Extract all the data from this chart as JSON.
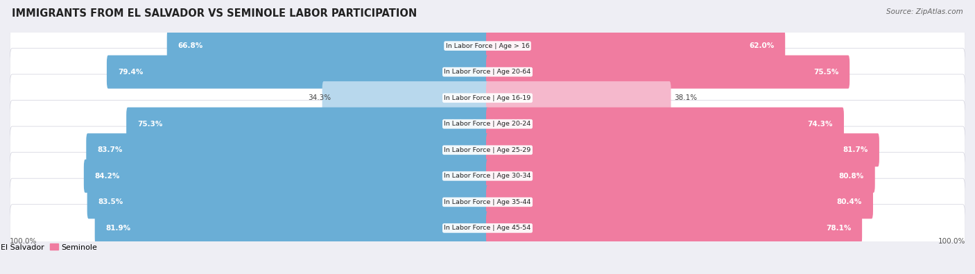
{
  "title": "IMMIGRANTS FROM EL SALVADOR VS SEMINOLE LABOR PARTICIPATION",
  "source": "Source: ZipAtlas.com",
  "categories": [
    "In Labor Force | Age > 16",
    "In Labor Force | Age 20-64",
    "In Labor Force | Age 16-19",
    "In Labor Force | Age 20-24",
    "In Labor Force | Age 25-29",
    "In Labor Force | Age 30-34",
    "In Labor Force | Age 35-44",
    "In Labor Force | Age 45-54"
  ],
  "left_values": [
    66.8,
    79.4,
    34.3,
    75.3,
    83.7,
    84.2,
    83.5,
    81.9
  ],
  "right_values": [
    62.0,
    75.5,
    38.1,
    74.3,
    81.7,
    80.8,
    80.4,
    78.1
  ],
  "left_color": "#6aaed6",
  "right_color": "#f07ca0",
  "left_color_light": "#b8d8ed",
  "right_color_light": "#f5b8cc",
  "left_label": "Immigrants from El Salvador",
  "right_label": "Seminole",
  "bg_color": "#eeeef4",
  "row_bg_color": "#e2e2ec",
  "axis_label_left": "100.0%",
  "axis_label_right": "100.0%",
  "max_val": 100,
  "bar_height": 0.68,
  "light_threshold": 50
}
